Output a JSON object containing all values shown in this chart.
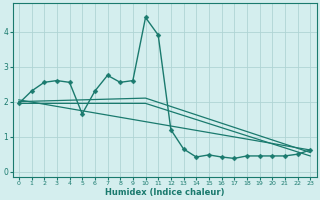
{
  "xlabel": "Humidex (Indice chaleur)",
  "bg_color": "#d4eeee",
  "grid_color": "#afd4d4",
  "line_color": "#1a7a6e",
  "xlim": [
    -0.5,
    23.5
  ],
  "ylim": [
    -0.15,
    4.8
  ],
  "xticks": [
    0,
    1,
    2,
    3,
    4,
    5,
    6,
    7,
    8,
    9,
    10,
    11,
    12,
    13,
    14,
    15,
    16,
    17,
    18,
    19,
    20,
    21,
    22,
    23
  ],
  "yticks": [
    0,
    1,
    2,
    3,
    4
  ],
  "series_main": {
    "x": [
      0,
      1,
      2,
      3,
      4,
      5,
      6,
      7,
      8,
      9,
      10,
      11,
      12,
      13,
      14,
      15,
      16,
      17,
      18,
      19,
      20,
      21,
      22,
      23
    ],
    "y": [
      1.95,
      2.3,
      2.55,
      2.6,
      2.55,
      1.65,
      2.3,
      2.75,
      2.55,
      2.6,
      4.4,
      3.9,
      1.2,
      0.65,
      0.42,
      0.48,
      0.42,
      0.38,
      0.45,
      0.45,
      0.45,
      0.45,
      0.5,
      0.62
    ]
  },
  "line_straight1": {
    "x": [
      0,
      10,
      23
    ],
    "y": [
      2.0,
      2.1,
      0.55
    ]
  },
  "line_straight2": {
    "x": [
      0,
      10,
      23
    ],
    "y": [
      1.95,
      1.95,
      0.45
    ]
  },
  "line_straight3": {
    "x": [
      0,
      23
    ],
    "y": [
      2.05,
      0.62
    ]
  }
}
